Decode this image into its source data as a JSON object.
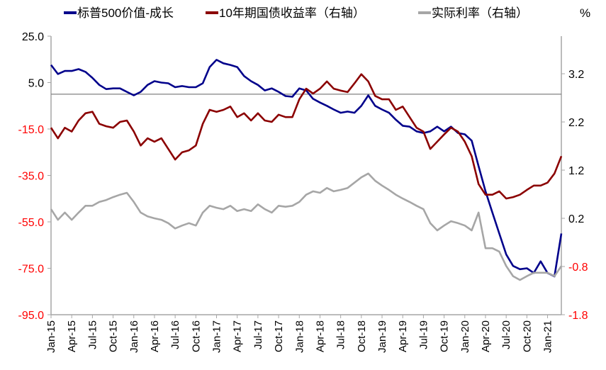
{
  "chart_data": {
    "type": "line",
    "title": "",
    "unit_label": "%",
    "legend_placement": "top",
    "left_axis": {
      "ylim": [
        -95,
        25
      ],
      "ticks": [
        "25.0",
        "5.0",
        "-15.0",
        "-35.0",
        "-55.0",
        "-75.0",
        "-95.0"
      ],
      "tick_values": [
        25,
        5,
        -15,
        -35,
        -55,
        -75,
        -95
      ]
    },
    "right_axis": {
      "ylim": [
        -1.8,
        3.98
      ],
      "ticks": [
        "3.2",
        "2.2",
        "1.2",
        "0.2",
        "-0.8",
        "-1.8"
      ],
      "tick_values": [
        3.2,
        2.2,
        1.2,
        0.2,
        -0.8,
        -1.8
      ]
    },
    "x_ticks": [
      "Jan-15",
      "Apr-15",
      "Jul-15",
      "Oct-15",
      "Jan-16",
      "Apr-16",
      "Jul-16",
      "Oct-16",
      "Jan-17",
      "Apr-17",
      "Jul-17",
      "Oct-17",
      "Jan-18",
      "Apr-18",
      "Jul-18",
      "Oct-18",
      "Jan-19",
      "Apr-19",
      "Jul-19",
      "Oct-19",
      "Jan-20",
      "Apr-20",
      "Jul-20",
      "Oct-20",
      "Jan-21"
    ],
    "x_start": "2015-01",
    "months_count": 75,
    "series": [
      {
        "name": "标普500价值-成长",
        "axis": "left",
        "color": "#00008B",
        "values": [
          12.6,
          8.7,
          10,
          10,
          10.8,
          9.6,
          7,
          4,
          2.2,
          2.5,
          2.5,
          1,
          -0.5,
          1,
          4,
          5.6,
          5,
          4.7,
          3,
          3.5,
          3,
          3,
          4.7,
          11.7,
          14.8,
          13.3,
          12.6,
          11.7,
          7.8,
          5.6,
          4,
          1.6,
          2.5,
          1,
          -0.8,
          -1.1,
          2.5,
          1.6,
          -2,
          -3.6,
          -5,
          -6.6,
          -8,
          -7.5,
          -8,
          -5,
          -0.5,
          -5,
          -6.6,
          -8,
          -11,
          -13.6,
          -14,
          -16,
          -16.7,
          -16,
          -14,
          -16,
          -14,
          -16.7,
          -17.3,
          -20,
          -31,
          -41.8,
          -51,
          -60,
          -69,
          -74,
          -75.4,
          -75,
          -77,
          -72,
          -77,
          -78.5,
          -60
        ]
      },
      {
        "name": "10年期国债收益率（右轴）",
        "axis": "right",
        "color": "#8B0000",
        "values": [
          2.08,
          1.86,
          2.08,
          2.0,
          2.23,
          2.38,
          2.41,
          2.16,
          2.11,
          2.08,
          2.2,
          2.23,
          2.0,
          1.71,
          1.86,
          1.79,
          1.86,
          1.64,
          1.42,
          1.57,
          1.61,
          1.71,
          2.16,
          2.45,
          2.41,
          2.45,
          2.52,
          2.3,
          2.38,
          2.23,
          2.38,
          2.23,
          2.2,
          2.35,
          2.3,
          2.3,
          2.67,
          2.89,
          2.79,
          2.89,
          3.04,
          2.89,
          2.85,
          2.82,
          3.0,
          3.19,
          3.04,
          2.74,
          2.67,
          2.67,
          2.45,
          2.52,
          2.3,
          2.08,
          2.0,
          1.64,
          1.79,
          1.94,
          2.08,
          2.0,
          1.79,
          1.49,
          0.91,
          0.69,
          0.69,
          0.76,
          0.61,
          0.64,
          0.69,
          0.79,
          0.88,
          0.88,
          0.94,
          1.13,
          1.49
        ]
      },
      {
        "name": "实际利率（右轴）",
        "axis": "right",
        "color": "#A6A6A6",
        "values": [
          0.39,
          0.17,
          0.32,
          0.17,
          0.32,
          0.46,
          0.46,
          0.54,
          0.58,
          0.64,
          0.69,
          0.73,
          0.54,
          0.32,
          0.24,
          0.2,
          0.17,
          0.1,
          -0.01,
          0.05,
          0.1,
          0.05,
          0.32,
          0.46,
          0.42,
          0.39,
          0.46,
          0.35,
          0.39,
          0.35,
          0.49,
          0.39,
          0.32,
          0.46,
          0.44,
          0.46,
          0.54,
          0.69,
          0.76,
          0.73,
          0.83,
          0.76,
          0.79,
          0.83,
          0.94,
          1.05,
          1.13,
          0.98,
          0.88,
          0.79,
          0.69,
          0.61,
          0.54,
          0.46,
          0.39,
          0.1,
          -0.05,
          0.05,
          0.14,
          0.1,
          0.05,
          -0.05,
          0.32,
          -0.42,
          -0.42,
          -0.49,
          -0.79,
          -1.0,
          -1.08,
          -1.0,
          -0.93,
          -0.93,
          -0.93,
          -1.0,
          -0.79
        ]
      }
    ],
    "colors": {
      "positive_tick": "#000000",
      "negative_tick": "#FF0000",
      "axis": "#A6A6A6"
    }
  }
}
